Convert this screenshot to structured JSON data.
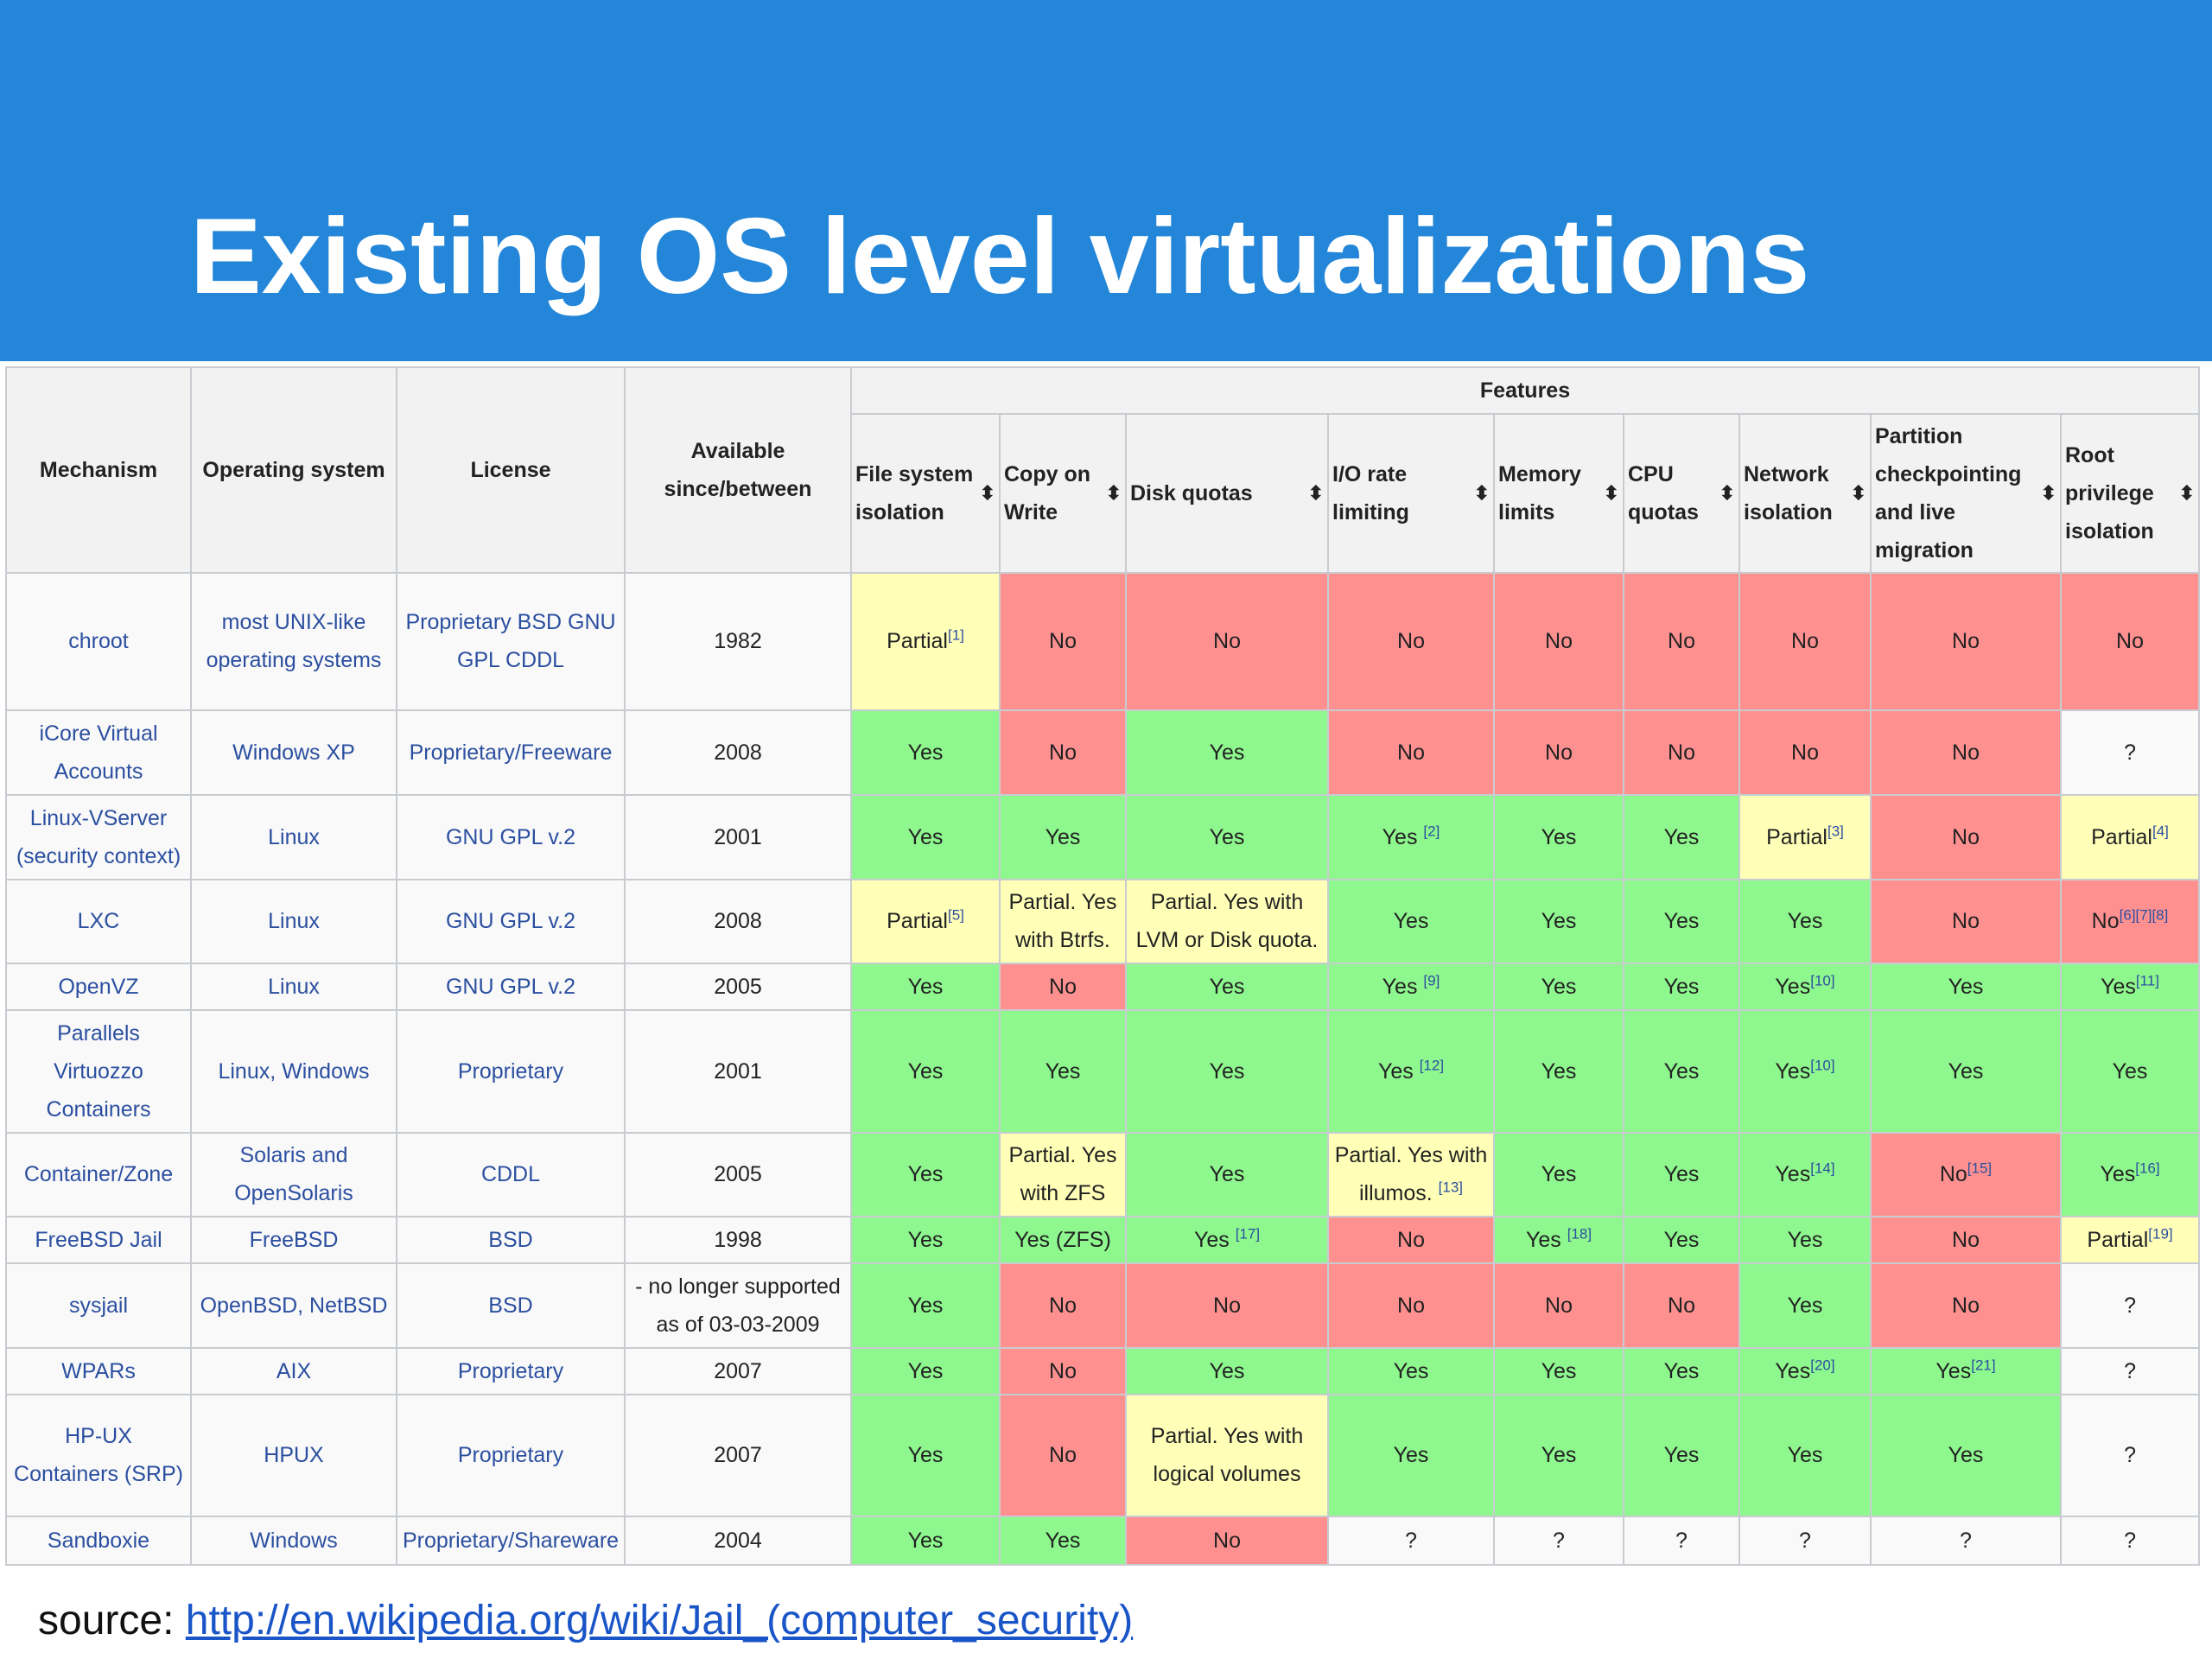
{
  "slide": {
    "title": "Existing OS level virtualizations",
    "source_label": "source:",
    "source_url": "http://en.wikipedia.org/wiki/Jail_(computer_security)"
  },
  "colors": {
    "banner": "#2486d8",
    "yes": "#8ef78e",
    "no": "#ff9090",
    "partial": "#ffffb8",
    "link": "#2b4fa0"
  },
  "table": {
    "headers": {
      "mechanism": "Mechanism",
      "os": "Operating system",
      "license": "License",
      "available": "Available since/between",
      "features": "Features"
    },
    "feature_headers": [
      "File system isolation",
      "Copy on Write",
      "Disk quotas",
      "I/O rate limiting",
      "Memory limits",
      "CPU quotas",
      "Network isolation",
      "Partition checkpointing and live migration",
      "Root privilege isolation"
    ],
    "sort_icon": "sort-icon",
    "rows": [
      {
        "mechanism": "chroot",
        "os": "most UNIX-like operating systems",
        "license": "Proprietary BSD GNU GPL CDDL",
        "available": "1982",
        "cells": [
          {
            "t": "Partial",
            "s": "[1]",
            "c": "partial"
          },
          {
            "t": "No",
            "s": "",
            "c": "no"
          },
          {
            "t": "No",
            "s": "",
            "c": "no"
          },
          {
            "t": "No",
            "s": "",
            "c": "no"
          },
          {
            "t": "No",
            "s": "",
            "c": "no"
          },
          {
            "t": "No",
            "s": "",
            "c": "no"
          },
          {
            "t": "No",
            "s": "",
            "c": "no"
          },
          {
            "t": "No",
            "s": "",
            "c": "no"
          },
          {
            "t": "No",
            "s": "",
            "c": "no"
          }
        ]
      },
      {
        "mechanism": "iCore Virtual Accounts",
        "os": "Windows XP",
        "license": "Proprietary/Freeware",
        "available": "2008",
        "cells": [
          {
            "t": "Yes",
            "s": "",
            "c": "yes"
          },
          {
            "t": "No",
            "s": "",
            "c": "no"
          },
          {
            "t": "Yes",
            "s": "",
            "c": "yes"
          },
          {
            "t": "No",
            "s": "",
            "c": "no"
          },
          {
            "t": "No",
            "s": "",
            "c": "no"
          },
          {
            "t": "No",
            "s": "",
            "c": "no"
          },
          {
            "t": "No",
            "s": "",
            "c": "no"
          },
          {
            "t": "No",
            "s": "",
            "c": "no"
          },
          {
            "t": "?",
            "s": "",
            "c": "unk"
          }
        ]
      },
      {
        "mechanism": "Linux-VServer (security context)",
        "os": "Linux",
        "license": "GNU GPL v.2",
        "available": "2001",
        "cells": [
          {
            "t": "Yes",
            "s": "",
            "c": "yes"
          },
          {
            "t": "Yes",
            "s": "",
            "c": "yes"
          },
          {
            "t": "Yes",
            "s": "",
            "c": "yes"
          },
          {
            "t": "Yes ",
            "s": "[2]",
            "c": "yes"
          },
          {
            "t": "Yes",
            "s": "",
            "c": "yes"
          },
          {
            "t": "Yes",
            "s": "",
            "c": "yes"
          },
          {
            "t": "Partial",
            "s": "[3]",
            "c": "partial"
          },
          {
            "t": "No",
            "s": "",
            "c": "no"
          },
          {
            "t": "Partial",
            "s": "[4]",
            "c": "partial"
          }
        ]
      },
      {
        "mechanism": "LXC",
        "os": "Linux",
        "license": "GNU GPL v.2",
        "available": "2008",
        "cells": [
          {
            "t": "Partial",
            "s": "[5]",
            "c": "partial"
          },
          {
            "t": "Partial. Yes with Btrfs.",
            "s": "",
            "c": "partial"
          },
          {
            "t": "Partial. Yes with LVM or Disk quota.",
            "s": "",
            "c": "partial"
          },
          {
            "t": "Yes",
            "s": "",
            "c": "yes"
          },
          {
            "t": "Yes",
            "s": "",
            "c": "yes"
          },
          {
            "t": "Yes",
            "s": "",
            "c": "yes"
          },
          {
            "t": "Yes",
            "s": "",
            "c": "yes"
          },
          {
            "t": "No",
            "s": "",
            "c": "no"
          },
          {
            "t": "No",
            "s": "[6][7][8]",
            "c": "no"
          }
        ]
      },
      {
        "mechanism": "OpenVZ",
        "os": "Linux",
        "license": "GNU GPL v.2",
        "available": "2005",
        "cells": [
          {
            "t": "Yes",
            "s": "",
            "c": "yes"
          },
          {
            "t": "No",
            "s": "",
            "c": "no"
          },
          {
            "t": "Yes",
            "s": "",
            "c": "yes"
          },
          {
            "t": "Yes ",
            "s": "[9]",
            "c": "yes"
          },
          {
            "t": "Yes",
            "s": "",
            "c": "yes"
          },
          {
            "t": "Yes",
            "s": "",
            "c": "yes"
          },
          {
            "t": "Yes",
            "s": "[10]",
            "c": "yes"
          },
          {
            "t": "Yes",
            "s": "",
            "c": "yes"
          },
          {
            "t": "Yes",
            "s": "[11]",
            "c": "yes"
          }
        ]
      },
      {
        "mechanism": "Parallels Virtuozzo Containers",
        "os": "Linux, Windows",
        "license": "Proprietary",
        "available": "2001",
        "cells": [
          {
            "t": "Yes",
            "s": "",
            "c": "yes"
          },
          {
            "t": "Yes",
            "s": "",
            "c": "yes"
          },
          {
            "t": "Yes",
            "s": "",
            "c": "yes"
          },
          {
            "t": "Yes ",
            "s": "[12]",
            "c": "yes"
          },
          {
            "t": "Yes",
            "s": "",
            "c": "yes"
          },
          {
            "t": "Yes",
            "s": "",
            "c": "yes"
          },
          {
            "t": "Yes",
            "s": "[10]",
            "c": "yes"
          },
          {
            "t": "Yes",
            "s": "",
            "c": "yes"
          },
          {
            "t": "Yes",
            "s": "",
            "c": "yes"
          }
        ]
      },
      {
        "mechanism": "Container/Zone",
        "os": "Solaris and OpenSolaris",
        "license": "CDDL",
        "available": "2005",
        "cells": [
          {
            "t": "Yes",
            "s": "",
            "c": "yes"
          },
          {
            "t": "Partial. Yes with ZFS",
            "s": "",
            "c": "partial"
          },
          {
            "t": "Yes",
            "s": "",
            "c": "yes"
          },
          {
            "t": "Partial. Yes with illumos. ",
            "s": "[13]",
            "c": "partial"
          },
          {
            "t": "Yes",
            "s": "",
            "c": "yes"
          },
          {
            "t": "Yes",
            "s": "",
            "c": "yes"
          },
          {
            "t": "Yes",
            "s": "[14]",
            "c": "yes"
          },
          {
            "t": "No",
            "s": "[15]",
            "c": "no"
          },
          {
            "t": "Yes",
            "s": "[16]",
            "c": "yes"
          }
        ]
      },
      {
        "mechanism": "FreeBSD Jail",
        "os": "FreeBSD",
        "license": "BSD",
        "available": "1998",
        "cells": [
          {
            "t": "Yes",
            "s": "",
            "c": "yes"
          },
          {
            "t": "Yes (ZFS)",
            "s": "",
            "c": "yes"
          },
          {
            "t": "Yes ",
            "s": "[17]",
            "c": "yes"
          },
          {
            "t": "No",
            "s": "",
            "c": "no"
          },
          {
            "t": "Yes ",
            "s": "[18]",
            "c": "yes"
          },
          {
            "t": "Yes",
            "s": "",
            "c": "yes"
          },
          {
            "t": "Yes",
            "s": "",
            "c": "yes"
          },
          {
            "t": "No",
            "s": "",
            "c": "no"
          },
          {
            "t": "Partial",
            "s": "[19]",
            "c": "partial"
          }
        ]
      },
      {
        "mechanism": "sysjail",
        "os": "OpenBSD, NetBSD",
        "license": "BSD",
        "available": "- no longer supported as of 03-03-2009",
        "cells": [
          {
            "t": "Yes",
            "s": "",
            "c": "yes"
          },
          {
            "t": "No",
            "s": "",
            "c": "no"
          },
          {
            "t": "No",
            "s": "",
            "c": "no"
          },
          {
            "t": "No",
            "s": "",
            "c": "no"
          },
          {
            "t": "No",
            "s": "",
            "c": "no"
          },
          {
            "t": "No",
            "s": "",
            "c": "no"
          },
          {
            "t": "Yes",
            "s": "",
            "c": "yes"
          },
          {
            "t": "No",
            "s": "",
            "c": "no"
          },
          {
            "t": "?",
            "s": "",
            "c": "unk"
          }
        ]
      },
      {
        "mechanism": "WPARs",
        "os": "AIX",
        "license": "Proprietary",
        "available": "2007",
        "cells": [
          {
            "t": "Yes",
            "s": "",
            "c": "yes"
          },
          {
            "t": "No",
            "s": "",
            "c": "no"
          },
          {
            "t": "Yes",
            "s": "",
            "c": "yes"
          },
          {
            "t": "Yes",
            "s": "",
            "c": "yes"
          },
          {
            "t": "Yes",
            "s": "",
            "c": "yes"
          },
          {
            "t": "Yes",
            "s": "",
            "c": "yes"
          },
          {
            "t": "Yes",
            "s": "[20]",
            "c": "yes"
          },
          {
            "t": "Yes",
            "s": "[21]",
            "c": "yes"
          },
          {
            "t": "?",
            "s": "",
            "c": "unk"
          }
        ]
      },
      {
        "mechanism": "HP-UX Containers (SRP)",
        "os": "HPUX",
        "license": "Proprietary",
        "available": "2007",
        "cells": [
          {
            "t": "Yes",
            "s": "",
            "c": "yes"
          },
          {
            "t": "No",
            "s": "",
            "c": "no"
          },
          {
            "t": "Partial. Yes with logical volumes",
            "s": "",
            "c": "partial"
          },
          {
            "t": "Yes",
            "s": "",
            "c": "yes"
          },
          {
            "t": "Yes",
            "s": "",
            "c": "yes"
          },
          {
            "t": "Yes",
            "s": "",
            "c": "yes"
          },
          {
            "t": "Yes",
            "s": "",
            "c": "yes"
          },
          {
            "t": "Yes",
            "s": "",
            "c": "yes"
          },
          {
            "t": "?",
            "s": "",
            "c": "unk"
          }
        ]
      },
      {
        "mechanism": "Sandboxie",
        "os": "Windows",
        "license": "Proprietary/Shareware",
        "available": "2004",
        "cells": [
          {
            "t": "Yes",
            "s": "",
            "c": "yes"
          },
          {
            "t": "Yes",
            "s": "",
            "c": "yes"
          },
          {
            "t": "No",
            "s": "",
            "c": "no"
          },
          {
            "t": "?",
            "s": "",
            "c": "unk"
          },
          {
            "t": "?",
            "s": "",
            "c": "unk"
          },
          {
            "t": "?",
            "s": "",
            "c": "unk"
          },
          {
            "t": "?",
            "s": "",
            "c": "unk"
          },
          {
            "t": "?",
            "s": "",
            "c": "unk"
          },
          {
            "t": "?",
            "s": "",
            "c": "unk"
          }
        ]
      }
    ]
  }
}
